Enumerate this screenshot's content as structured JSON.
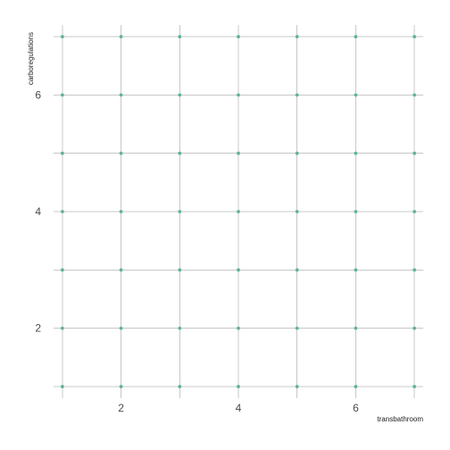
{
  "chart_data": {
    "type": "scatter",
    "xlabel": "transbathroom",
    "ylabel": "carboregulations",
    "xlim": [
      0.85,
      7.15
    ],
    "ylim": [
      0.8,
      7.2
    ],
    "xticks": [
      2,
      4,
      6
    ],
    "yticks": [
      2,
      4,
      6
    ],
    "x_grid": [
      1,
      2,
      3,
      4,
      5,
      6,
      7
    ],
    "y_grid": [
      1,
      2,
      3,
      4,
      5,
      6,
      7
    ],
    "grid": true,
    "legend": "none",
    "point_color": "#5fb596",
    "grid_color": "#c8c8c8",
    "series": [
      {
        "points": [
          [
            1,
            1
          ],
          [
            2,
            1
          ],
          [
            3,
            1
          ],
          [
            4,
            1
          ],
          [
            5,
            1
          ],
          [
            6,
            1
          ],
          [
            7,
            1
          ],
          [
            1,
            2
          ],
          [
            2,
            2
          ],
          [
            3,
            2
          ],
          [
            4,
            2
          ],
          [
            5,
            2
          ],
          [
            6,
            2
          ],
          [
            7,
            2
          ],
          [
            1,
            3
          ],
          [
            2,
            3
          ],
          [
            3,
            3
          ],
          [
            4,
            3
          ],
          [
            5,
            3
          ],
          [
            6,
            3
          ],
          [
            7,
            3
          ],
          [
            1,
            4
          ],
          [
            2,
            4
          ],
          [
            3,
            4
          ],
          [
            4,
            4
          ],
          [
            5,
            4
          ],
          [
            6,
            4
          ],
          [
            7,
            4
          ],
          [
            1,
            5
          ],
          [
            2,
            5
          ],
          [
            3,
            5
          ],
          [
            4,
            5
          ],
          [
            5,
            5
          ],
          [
            6,
            5
          ],
          [
            7,
            5
          ],
          [
            1,
            6
          ],
          [
            2,
            6
          ],
          [
            3,
            6
          ],
          [
            4,
            6
          ],
          [
            5,
            6
          ],
          [
            6,
            6
          ],
          [
            7,
            6
          ],
          [
            1,
            7
          ],
          [
            2,
            7
          ],
          [
            3,
            7
          ],
          [
            4,
            7
          ],
          [
            5,
            7
          ],
          [
            6,
            7
          ],
          [
            7,
            7
          ]
        ]
      }
    ]
  }
}
